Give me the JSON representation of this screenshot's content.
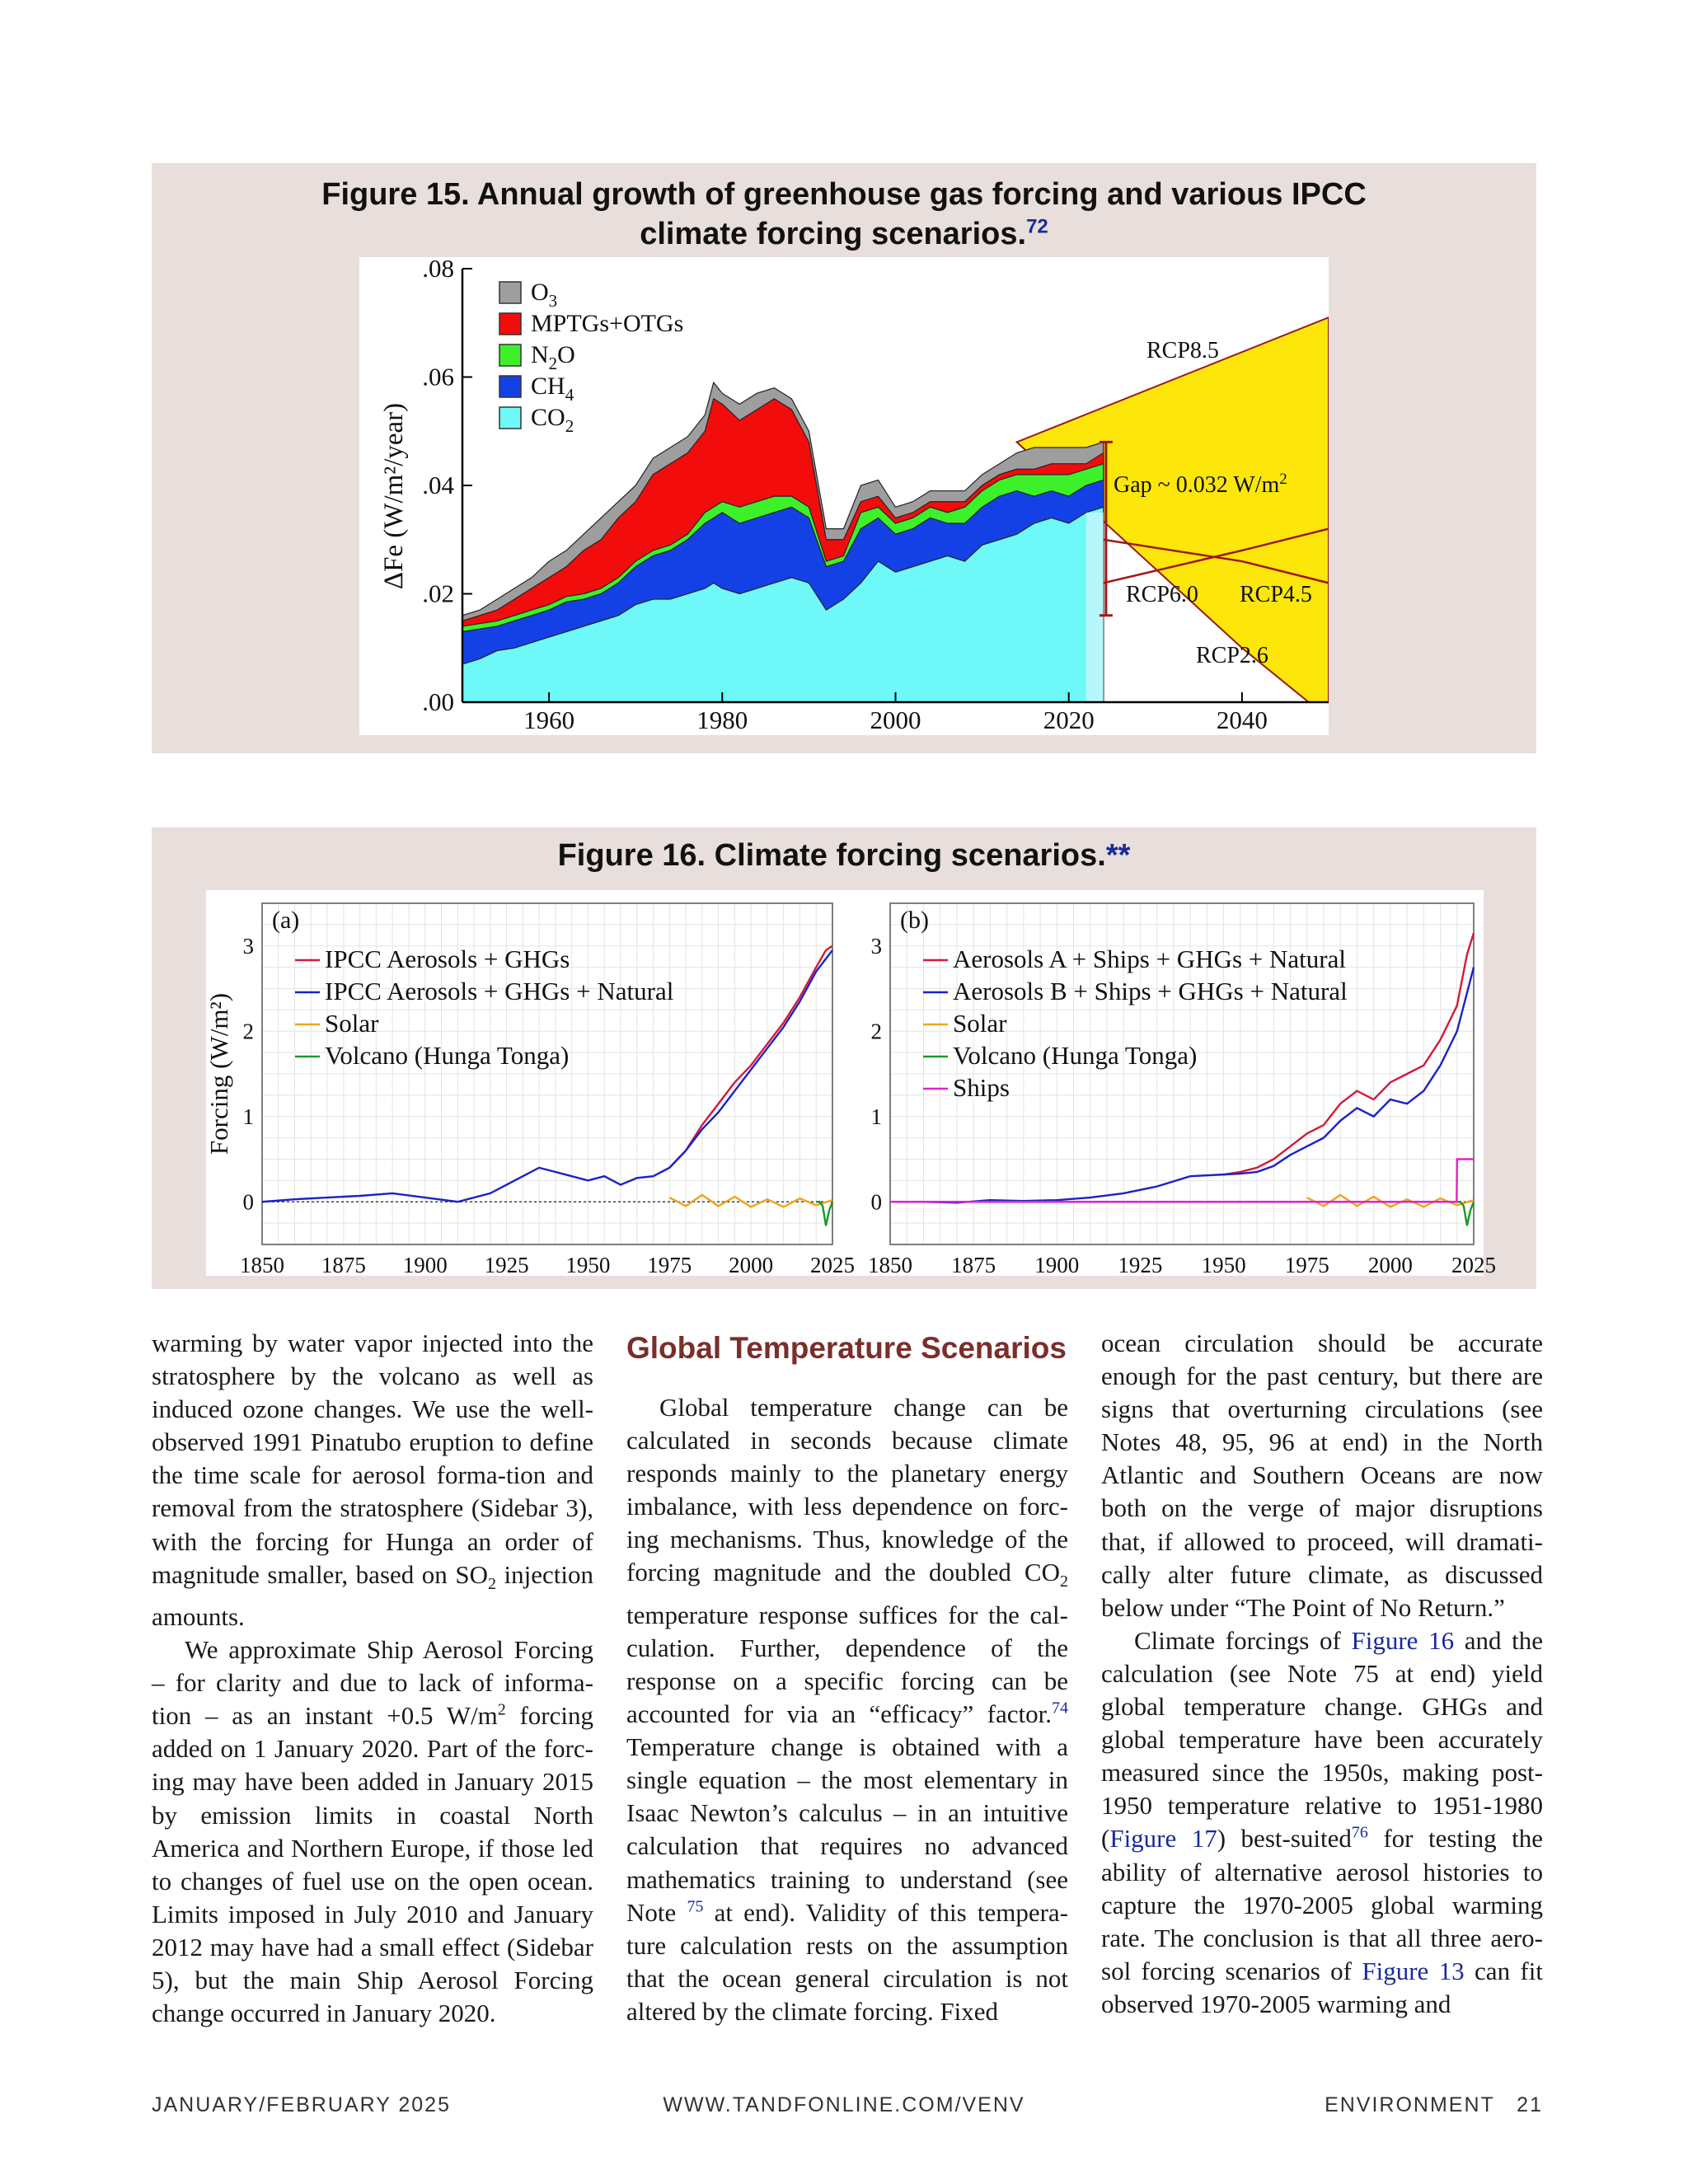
{
  "figure15": {
    "title_line1": "Figure 15.  Annual growth of greenhouse gas forcing and various IPCC",
    "title_line2": "climate forcing scenarios.",
    "title_ref": "72",
    "chart_data": {
      "type": "area",
      "ylabel": "ΔFe (W/m²/year)",
      "y_ticks": [
        ".00",
        ".02",
        ".04",
        ".06",
        ".08"
      ],
      "x_ticks": [
        "1960",
        "1980",
        "2000",
        "2020",
        "2040"
      ],
      "xlim": [
        1950,
        2050
      ],
      "ylim": [
        0,
        0.08
      ],
      "legend": [
        "O3",
        "MPTGs+OTGs",
        "N2O",
        "CH4",
        "CO2"
      ],
      "annotations": [
        "RCP8.5",
        "Gap ~ 0.032 W/m2",
        "RCP6.0",
        "RCP4.5",
        "RCP2.6"
      ],
      "years": [
        1950,
        1952,
        1954,
        1956,
        1958,
        1960,
        1962,
        1964,
        1966,
        1968,
        1970,
        1972,
        1974,
        1976,
        1978,
        1979,
        1980,
        1982,
        1984,
        1986,
        1988,
        1990,
        1992,
        1994,
        1996,
        1998,
        2000,
        2002,
        2004,
        2006,
        2008,
        2010,
        2012,
        2014,
        2016,
        2018,
        2020,
        2022,
        2024
      ],
      "series": [
        {
          "name": "CO2",
          "values": [
            0.007,
            0.008,
            0.0095,
            0.01,
            0.011,
            0.012,
            0.013,
            0.014,
            0.015,
            0.016,
            0.018,
            0.019,
            0.019,
            0.02,
            0.021,
            0.022,
            0.021,
            0.02,
            0.021,
            0.022,
            0.023,
            0.022,
            0.017,
            0.019,
            0.022,
            0.026,
            0.024,
            0.025,
            0.026,
            0.027,
            0.026,
            0.029,
            0.03,
            0.031,
            0.033,
            0.034,
            0.033,
            0.035,
            0.036
          ]
        },
        {
          "name": "CH4",
          "values": [
            0.013,
            0.0135,
            0.014,
            0.015,
            0.016,
            0.017,
            0.0185,
            0.019,
            0.02,
            0.022,
            0.025,
            0.027,
            0.028,
            0.03,
            0.033,
            0.034,
            0.035,
            0.033,
            0.034,
            0.035,
            0.036,
            0.034,
            0.025,
            0.026,
            0.032,
            0.034,
            0.031,
            0.032,
            0.034,
            0.033,
            0.033,
            0.036,
            0.038,
            0.039,
            0.038,
            0.039,
            0.038,
            0.04,
            0.041
          ]
        },
        {
          "name": "N2O",
          "values": [
            0.014,
            0.0145,
            0.015,
            0.016,
            0.017,
            0.018,
            0.0195,
            0.02,
            0.021,
            0.023,
            0.026,
            0.028,
            0.029,
            0.031,
            0.035,
            0.036,
            0.037,
            0.036,
            0.037,
            0.038,
            0.038,
            0.036,
            0.026,
            0.027,
            0.035,
            0.036,
            0.033,
            0.034,
            0.036,
            0.035,
            0.036,
            0.039,
            0.041,
            0.042,
            0.042,
            0.042,
            0.042,
            0.043,
            0.044
          ]
        },
        {
          "name": "MPTGs+OTGs",
          "values": [
            0.015,
            0.016,
            0.017,
            0.019,
            0.021,
            0.023,
            0.025,
            0.028,
            0.03,
            0.034,
            0.037,
            0.042,
            0.044,
            0.046,
            0.05,
            0.056,
            0.055,
            0.052,
            0.054,
            0.056,
            0.054,
            0.048,
            0.03,
            0.03,
            0.037,
            0.038,
            0.034,
            0.035,
            0.037,
            0.037,
            0.037,
            0.04,
            0.042,
            0.043,
            0.043,
            0.044,
            0.044,
            0.044,
            0.046
          ]
        },
        {
          "name": "O3",
          "values": [
            0.016,
            0.017,
            0.019,
            0.021,
            0.023,
            0.026,
            0.028,
            0.031,
            0.034,
            0.037,
            0.04,
            0.045,
            0.047,
            0.049,
            0.053,
            0.059,
            0.057,
            0.055,
            0.057,
            0.058,
            0.056,
            0.05,
            0.032,
            0.032,
            0.04,
            0.041,
            0.036,
            0.037,
            0.039,
            0.039,
            0.039,
            0.042,
            0.044,
            0.046,
            0.047,
            0.047,
            0.047,
            0.047,
            0.048
          ]
        }
      ],
      "scenarios": [
        {
          "name": "RCP8.5",
          "points": [
            [
              2014,
              0.048
            ],
            [
              2050,
              0.071
            ]
          ]
        },
        {
          "name": "RCP2.6",
          "points": [
            [
              2014,
              0.048
            ],
            [
              2040,
              0.01
            ],
            [
              2050,
              -0.003
            ]
          ]
        },
        {
          "name": "RCP6.0",
          "points": [
            [
              2024,
              0.03
            ],
            [
              2040,
              0.026
            ],
            [
              2050,
              0.022
            ]
          ]
        },
        {
          "name": "RCP4.5",
          "points": [
            [
              2024,
              0.022
            ],
            [
              2040,
              0.028
            ],
            [
              2050,
              0.032
            ]
          ]
        }
      ]
    }
  },
  "figure16": {
    "title": "Figure 16.  Climate forcing scenarios.",
    "title_ref": "**",
    "panel_a": {
      "label": "(a)",
      "ylabel": "Forcing (W/m²)",
      "legend": [
        "IPCC Aerosols + GHGs",
        "IPCC Aerosols + GHGs + Natural",
        "Solar",
        "Volcano (Hunga Tonga)"
      ],
      "legend_colors": [
        "#d21a3a",
        "#1a22c8",
        "#f0a418",
        "#1a9a2a"
      ],
      "chart_data": {
        "type": "line",
        "xlim": [
          1850,
          2025
        ],
        "ylim": [
          -0.5,
          3.5
        ],
        "x_ticks": [
          "1850",
          "1875",
          "1900",
          "1925",
          "1950",
          "1975",
          "2000",
          "2025"
        ],
        "y_ticks": [
          "0",
          "1",
          "2",
          "3"
        ],
        "series": [
          {
            "name": "IPCC Aerosols + GHGs",
            "x": [
              1975,
              1980,
              1985,
              1990,
              1995,
              2000,
              2005,
              2010,
              2015,
              2020,
              2023,
              2025
            ],
            "y": [
              0.4,
              0.6,
              0.9,
              1.15,
              1.4,
              1.6,
              1.85,
              2.1,
              2.4,
              2.75,
              2.95,
              3.0
            ]
          },
          {
            "name": "IPCC Aerosols + GHGs + Natural",
            "x": [
              1850,
              1860,
              1870,
              1880,
              1890,
              1900,
              1910,
              1920,
              1925,
              1930,
              1935,
              1940,
              1945,
              1950,
              1955,
              1960,
              1965,
              1970,
              1975,
              1980,
              1985,
              1990,
              1995,
              2000,
              2005,
              2010,
              2015,
              2020,
              2023,
              2025
            ],
            "y": [
              0,
              0.03,
              0.05,
              0.07,
              0.1,
              0.05,
              0.0,
              0.1,
              0.2,
              0.3,
              0.4,
              0.35,
              0.3,
              0.25,
              0.3,
              0.2,
              0.28,
              0.3,
              0.4,
              0.6,
              0.85,
              1.05,
              1.3,
              1.55,
              1.8,
              2.05,
              2.35,
              2.7,
              2.85,
              2.95
            ]
          },
          {
            "name": "Solar",
            "x": [
              1975,
              1980,
              1985,
              1990,
              1995,
              2000,
              2005,
              2010,
              2015,
              2020,
              2025
            ],
            "y": [
              0.05,
              -0.05,
              0.08,
              -0.05,
              0.06,
              -0.06,
              0.03,
              -0.06,
              0.04,
              -0.04,
              0.02
            ]
          },
          {
            "name": "Volcano (Hunga Tonga)",
            "x": [
              2020,
              2021,
              2022,
              2023,
              2024,
              2025
            ],
            "y": [
              0,
              0,
              -0.05,
              -0.28,
              -0.1,
              0
            ]
          }
        ]
      }
    },
    "panel_b": {
      "label": "(b)",
      "legend": [
        "Aerosols A + Ships + GHGs + Natural",
        "Aerosols B + Ships + GHGs + Natural",
        "Solar",
        "Volcano (Hunga Tonga)",
        "Ships"
      ],
      "legend_colors": [
        "#d21a3a",
        "#1a22c8",
        "#f0a418",
        "#1a9a2a",
        "#e020d0"
      ],
      "chart_data": {
        "type": "line",
        "xlim": [
          1850,
          2025
        ],
        "ylim": [
          -0.5,
          3.5
        ],
        "x_ticks": [
          "1850",
          "1875",
          "1900",
          "1925",
          "1950",
          "1975",
          "2000",
          "2025"
        ],
        "y_ticks": [
          "0",
          "1",
          "2",
          "3"
        ],
        "series": [
          {
            "name": "Aerosols A + Ships + GHGs + Natural",
            "x": [
              1950,
              1955,
              1960,
              1965,
              1970,
              1975,
              1980,
              1985,
              1990,
              1995,
              2000,
              2005,
              2010,
              2015,
              2020,
              2023,
              2025
            ],
            "y": [
              0.32,
              0.35,
              0.4,
              0.5,
              0.65,
              0.8,
              0.9,
              1.15,
              1.3,
              1.2,
              1.4,
              1.5,
              1.6,
              1.9,
              2.3,
              2.9,
              3.15
            ]
          },
          {
            "name": "Aerosols B + Ships + GHGs + Natural",
            "x": [
              1850,
              1860,
              1870,
              1880,
              1890,
              1900,
              1910,
              1920,
              1930,
              1940,
              1950,
              1955,
              1960,
              1965,
              1970,
              1975,
              1980,
              1985,
              1990,
              1995,
              2000,
              2005,
              2010,
              2015,
              2020,
              2023,
              2025
            ],
            "y": [
              0,
              0,
              -0.01,
              0.02,
              0.01,
              0.02,
              0.05,
              0.1,
              0.18,
              0.3,
              0.32,
              0.33,
              0.35,
              0.42,
              0.55,
              0.65,
              0.75,
              0.95,
              1.1,
              1.0,
              1.2,
              1.15,
              1.3,
              1.6,
              2.0,
              2.45,
              2.75
            ]
          },
          {
            "name": "Solar",
            "x": [
              1975,
              1980,
              1985,
              1990,
              1995,
              2000,
              2005,
              2010,
              2015,
              2020,
              2025
            ],
            "y": [
              0.05,
              -0.05,
              0.08,
              -0.05,
              0.06,
              -0.06,
              0.03,
              -0.06,
              0.04,
              -0.04,
              0.02
            ]
          },
          {
            "name": "Volcano (Hunga Tonga)",
            "x": [
              2020,
              2021,
              2022,
              2023,
              2024,
              2025
            ],
            "y": [
              0,
              0,
              -0.05,
              -0.28,
              -0.1,
              0
            ]
          },
          {
            "name": "Ships",
            "x": [
              1850,
              2019.9,
              2020,
              2025
            ],
            "y": [
              0,
              0,
              0.5,
              0.5
            ]
          }
        ]
      }
    }
  },
  "article": {
    "col1_p1": "warming by water vapor injected into the stratosphere by the volcano as well as induced ozone changes. We use the well-observed 1991 Pinatubo eruption to define the time scale for aerosol forma-tion and removal from the stratosphere (Sidebar 3), with the forcing for Hunga an order of magnitude smaller, based on SO",
    "col1_p1_sub": "2",
    "col1_p1_end": " injection amounts.",
    "col1_p2a": "We approximate Ship Aerosol Forcing – for clarity and due to lack of informa-tion – as an instant +0.5 W/m",
    "col1_p2_sup": "2",
    "col1_p2b": " forcing added on 1 January 2020. Part of the forc-ing may have been added in January 2015 by emission limits in coastal North America and Northern Europe, if those led to changes of fuel use on the open ocean. Limits imposed in July 2010 and January 2012 may have had a small effect (Sidebar 5), but the main Ship Aerosol Forcing change occurred in January 2020.",
    "heading": "Global Temperature Scenarios",
    "col2_a": "Global temperature change can be calculated in seconds because climate responds mainly to the planetary energy imbalance, with less dependence on forc-ing mechanisms. Thus, knowledge of the forcing magnitude and the doubled CO",
    "col2_sub": "2",
    "col2_b": " temperature response suffices for the cal-culation. Further, dependence of the response on a specific forcing can be accounted for via an “efficacy” factor.",
    "col2_ref74": "74",
    "col2_c": " Temperature change is obtained with a single equation – the most elementary in Isaac Newton’s calculus – in an intuitive calculation that requires no advanced mathematics training to understand (see Note ",
    "col2_ref75": "75",
    "col2_d": " at end). Validity of this tempera-ture calculation rests on the assumption that the ocean general circulation is not altered by the climate forcing. Fixed",
    "col3_p1": "ocean circulation should be accurate enough for the past century, but there are signs that overturning circulations (see Notes 48, 95, 96 at end) in the North Atlantic and Southern Oceans are now both on the verge of major disruptions that, if allowed to proceed, will dramati-cally alter future climate, as discussed below under “The Point of No Return.”",
    "col3_p2a": "Climate forcings of ",
    "col3_link_fig16": "Figure 16",
    "col3_p2b": " and the calculation (see Note 75 at end) yield global temperature change. GHGs and global temperature have been accurately measured since the 1950s, making post-1950 temperature relative to 1951-1980 (",
    "col3_link_fig17": "Figure 17",
    "col3_p2c": ") best-suited",
    "col3_ref76": "76",
    "col3_p2d": " for testing the ability of alternative aerosol histories to capture the 1970-2005 global warming rate. The conclusion is that all three aero-sol forcing scenarios of ",
    "col3_link_fig13": "Figure 13",
    "col3_p2e": " can fit observed 1970-2005 warming and"
  },
  "footer": {
    "left": "JANUARY/FEBRUARY 2025",
    "center": "WWW.TANDFONLINE.COM/VENV",
    "right": "ENVIRONMENT   21"
  }
}
